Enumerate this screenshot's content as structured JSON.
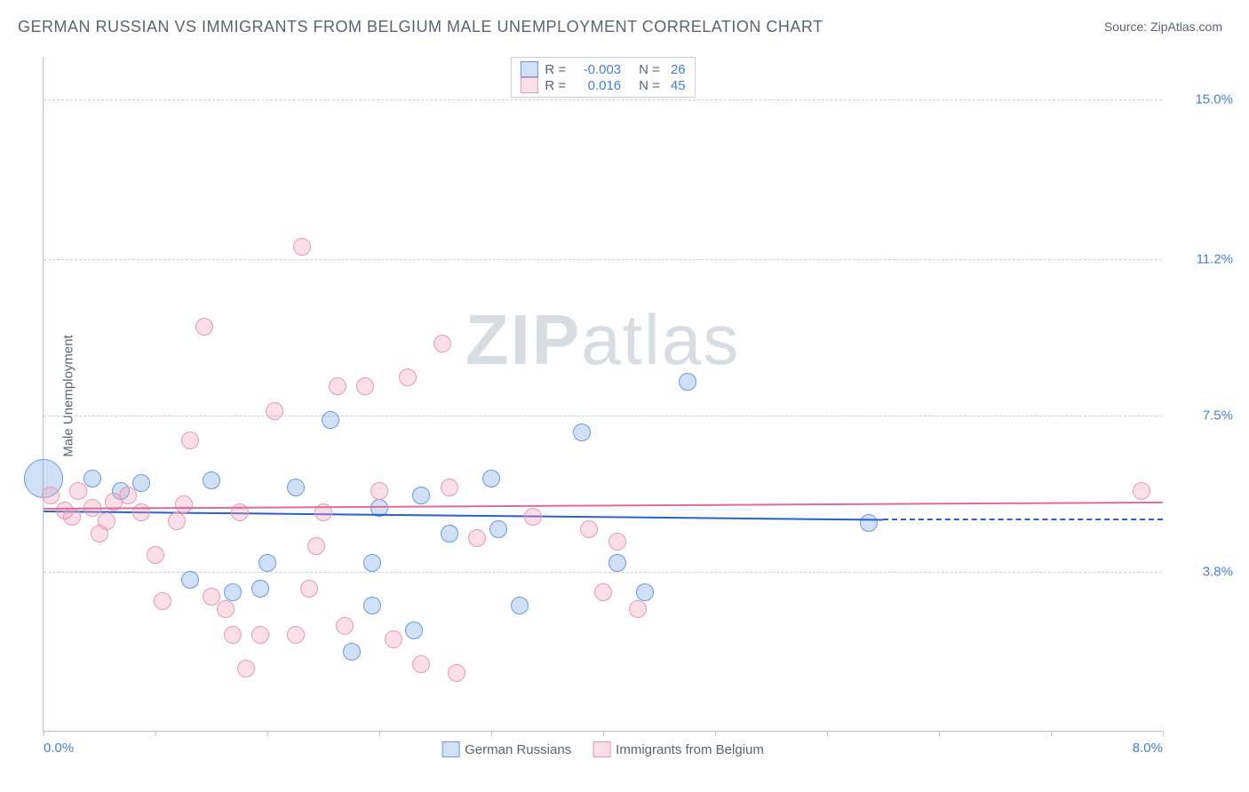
{
  "title": "GERMAN RUSSIAN VS IMMIGRANTS FROM BELGIUM MALE UNEMPLOYMENT CORRELATION CHART",
  "source": "Source: ZipAtlas.com",
  "ylabel": "Male Unemployment",
  "watermark_a": "ZIP",
  "watermark_b": "atlas",
  "chart": {
    "type": "scatter",
    "xlim": [
      0.0,
      8.0
    ],
    "ylim": [
      0.0,
      16.0
    ],
    "yticks": [
      {
        "v": 3.8,
        "label": "3.8%"
      },
      {
        "v": 7.5,
        "label": "7.5%"
      },
      {
        "v": 11.2,
        "label": "11.2%"
      },
      {
        "v": 15.0,
        "label": "15.0%"
      }
    ],
    "xticks": [
      {
        "v": 0.0,
        "label": "0.0%"
      },
      {
        "v": 0.8
      },
      {
        "v": 1.6
      },
      {
        "v": 2.4
      },
      {
        "v": 3.2
      },
      {
        "v": 4.0
      },
      {
        "v": 4.8
      },
      {
        "v": 5.6
      },
      {
        "v": 6.4
      },
      {
        "v": 7.2
      },
      {
        "v": 8.0,
        "label": "8.0%"
      }
    ],
    "grid_color": "#c8d0d8",
    "background_color": "#ffffff",
    "series": [
      {
        "name": "German Russians",
        "color_fill": "rgba(120,165,230,0.35)",
        "color_stroke": "#6a9ae0",
        "trend_color": "#2a5fcc",
        "R": "-0.003",
        "N": "26",
        "trend": {
          "x0": 0.0,
          "y0": 5.25,
          "x1": 6.0,
          "y1": 5.05
        },
        "ref_dash": {
          "y": 5.05,
          "x0": 6.0,
          "x1": 8.0
        },
        "marker_r": 10,
        "points": [
          {
            "x": 0.0,
            "y": 6.0,
            "r": 22
          },
          {
            "x": 0.35,
            "y": 6.0
          },
          {
            "x": 0.55,
            "y": 5.7
          },
          {
            "x": 0.7,
            "y": 5.9
          },
          {
            "x": 1.2,
            "y": 5.95
          },
          {
            "x": 1.05,
            "y": 3.6
          },
          {
            "x": 1.35,
            "y": 3.3
          },
          {
            "x": 1.6,
            "y": 4.0
          },
          {
            "x": 1.55,
            "y": 3.4
          },
          {
            "x": 2.05,
            "y": 7.4
          },
          {
            "x": 1.8,
            "y": 5.8
          },
          {
            "x": 2.2,
            "y": 1.9
          },
          {
            "x": 2.35,
            "y": 3.0
          },
          {
            "x": 2.35,
            "y": 4.0
          },
          {
            "x": 2.4,
            "y": 5.3
          },
          {
            "x": 2.7,
            "y": 5.6
          },
          {
            "x": 2.65,
            "y": 2.4
          },
          {
            "x": 2.9,
            "y": 4.7
          },
          {
            "x": 3.2,
            "y": 6.0
          },
          {
            "x": 3.25,
            "y": 4.8
          },
          {
            "x": 3.4,
            "y": 3.0
          },
          {
            "x": 3.85,
            "y": 7.1
          },
          {
            "x": 4.1,
            "y": 4.0
          },
          {
            "x": 4.6,
            "y": 8.3
          },
          {
            "x": 5.9,
            "y": 4.95
          },
          {
            "x": 4.3,
            "y": 3.3
          }
        ]
      },
      {
        "name": "Immigrants from Belgium",
        "color_fill": "rgba(240,160,190,0.35)",
        "color_stroke": "#e89ab5",
        "trend_color": "#e06a9a",
        "R": "0.016",
        "N": "45",
        "trend": {
          "x0": 0.0,
          "y0": 5.3,
          "x1": 8.0,
          "y1": 5.45
        },
        "marker_r": 10,
        "points": [
          {
            "x": 0.05,
            "y": 5.6
          },
          {
            "x": 0.2,
            "y": 5.1
          },
          {
            "x": 0.25,
            "y": 5.7
          },
          {
            "x": 0.35,
            "y": 5.3
          },
          {
            "x": 0.45,
            "y": 5.0
          },
          {
            "x": 0.5,
            "y": 5.45
          },
          {
            "x": 0.4,
            "y": 4.7
          },
          {
            "x": 0.6,
            "y": 5.6
          },
          {
            "x": 0.7,
            "y": 5.2
          },
          {
            "x": 0.8,
            "y": 4.2
          },
          {
            "x": 0.85,
            "y": 3.1
          },
          {
            "x": 0.95,
            "y": 5.0
          },
          {
            "x": 1.0,
            "y": 5.4
          },
          {
            "x": 1.05,
            "y": 6.9
          },
          {
            "x": 1.15,
            "y": 9.6
          },
          {
            "x": 1.2,
            "y": 3.2
          },
          {
            "x": 1.3,
            "y": 2.9
          },
          {
            "x": 1.35,
            "y": 2.3
          },
          {
            "x": 1.4,
            "y": 5.2
          },
          {
            "x": 1.45,
            "y": 1.5
          },
          {
            "x": 1.55,
            "y": 2.3
          },
          {
            "x": 1.65,
            "y": 7.6
          },
          {
            "x": 1.8,
            "y": 2.3
          },
          {
            "x": 1.85,
            "y": 11.5
          },
          {
            "x": 1.9,
            "y": 3.4
          },
          {
            "x": 1.95,
            "y": 4.4
          },
          {
            "x": 2.0,
            "y": 5.2
          },
          {
            "x": 2.1,
            "y": 8.2
          },
          {
            "x": 2.15,
            "y": 2.5
          },
          {
            "x": 2.3,
            "y": 8.2
          },
          {
            "x": 2.4,
            "y": 5.7
          },
          {
            "x": 2.5,
            "y": 2.2
          },
          {
            "x": 2.6,
            "y": 8.4
          },
          {
            "x": 2.7,
            "y": 1.6
          },
          {
            "x": 2.85,
            "y": 9.2
          },
          {
            "x": 2.9,
            "y": 5.8
          },
          {
            "x": 2.95,
            "y": 1.4
          },
          {
            "x": 3.1,
            "y": 4.6
          },
          {
            "x": 3.5,
            "y": 5.1
          },
          {
            "x": 3.9,
            "y": 4.8
          },
          {
            "x": 4.0,
            "y": 3.3
          },
          {
            "x": 4.1,
            "y": 4.5
          },
          {
            "x": 4.25,
            "y": 2.9
          },
          {
            "x": 7.85,
            "y": 5.7
          },
          {
            "x": 0.15,
            "y": 5.25
          }
        ]
      }
    ]
  },
  "legend_bottom": [
    {
      "label": "German Russians"
    },
    {
      "label": "Immigrants from Belgium"
    }
  ]
}
